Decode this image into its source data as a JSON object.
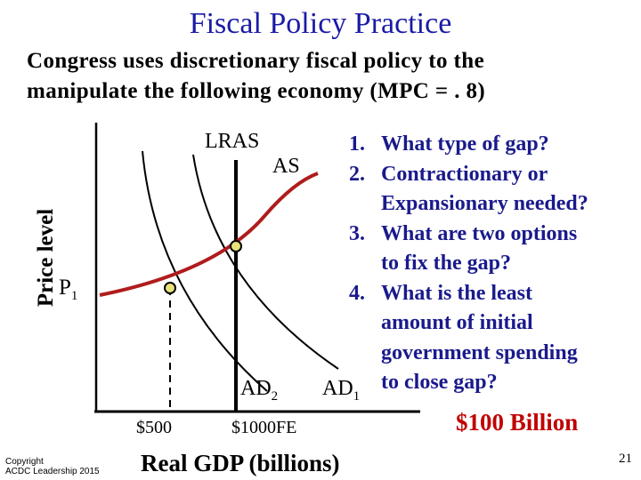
{
  "slide": {
    "title": "Fiscal Policy Practice",
    "subtitle_line1": "Congress uses discretionary fiscal policy to the",
    "subtitle_line2": "manipulate the following economy (MPC = . 8)",
    "copyright_line1": "Copyright",
    "copyright_line2": "ACDC Leadership 2015",
    "page_number": "21"
  },
  "diagram": {
    "y_axis_label": "Price level",
    "x_axis_label": "Real GDP (billions)",
    "price_label": "P",
    "price_subscript": "1",
    "lras_label": "LRAS",
    "as_label": "AS",
    "ad2_label": "AD",
    "ad2_subscript": "2",
    "ad1_label": "AD",
    "ad1_subscript": "1",
    "tick_500": "$500",
    "tick_1000": "$1000FE",
    "colors": {
      "as_curve": "#b01c1c",
      "point_fill": "#e8e27a",
      "title": "#1a1aa6",
      "questions": "#1a1a8c",
      "answer": "#c00000"
    }
  },
  "questions": [
    {
      "num": "1.",
      "text": "What type of gap?"
    },
    {
      "num": "2.",
      "line1": "Contractionary or",
      "line2": "Expansionary needed?"
    },
    {
      "num": "3.",
      "line1": "What are two options",
      "line2": "to fix the gap?"
    },
    {
      "num": "4.",
      "line1": "What is the least",
      "line2": "amount of initial",
      "line3": "government spending",
      "line4": "to close gap?"
    }
  ],
  "answer": "$100 Billion"
}
